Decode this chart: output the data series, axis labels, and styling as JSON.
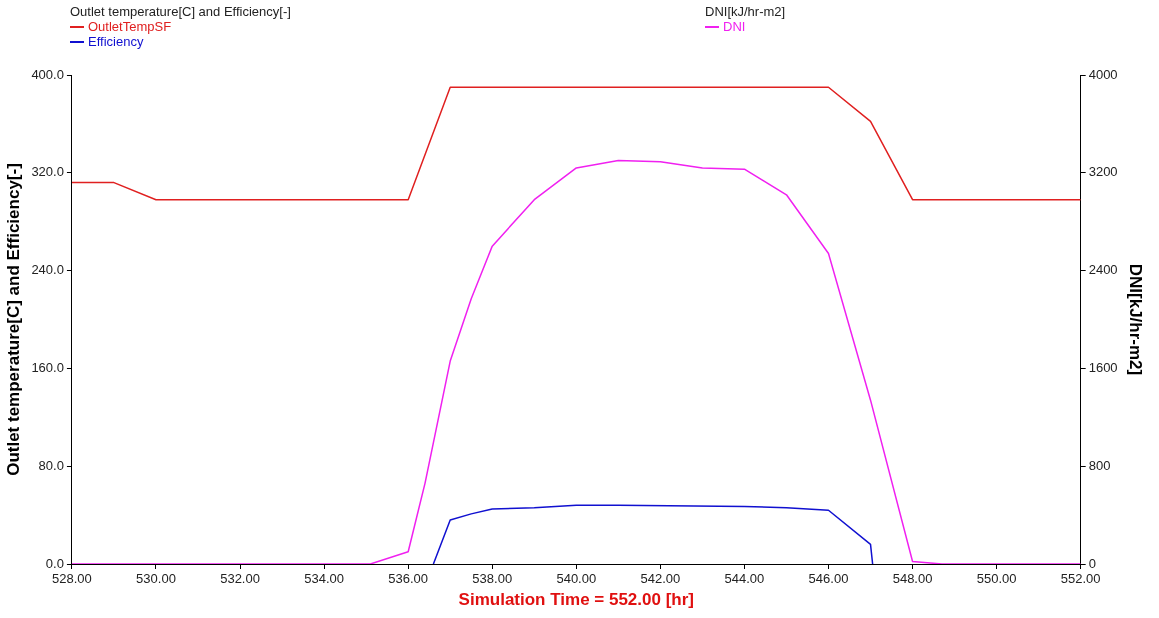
{
  "chart_data": {
    "type": "line",
    "legend_title": "Outlet temperature[C] and Efficiency[-]",
    "annotations": [
      "DNI[kJ/hr-m2]"
    ],
    "xlabel": "Simulation Time = 552.00 [hr]",
    "ylabel": "Outlet temperature[C] and Efficiency[-]",
    "y2label": "DNI[kJ/hr-m2]",
    "legend": "top",
    "grid": false,
    "marker": "none",
    "line_style": "solid",
    "xlim": [
      528,
      552
    ],
    "xticks": [
      {
        "value": 528,
        "label": "528.00"
      },
      {
        "value": 530,
        "label": "530.00"
      },
      {
        "value": 532,
        "label": "532.00"
      },
      {
        "value": 534,
        "label": "534.00"
      },
      {
        "value": 536,
        "label": "536.00"
      },
      {
        "value": 538,
        "label": "538.00"
      },
      {
        "value": 540,
        "label": "540.00"
      },
      {
        "value": 542,
        "label": "542.00"
      },
      {
        "value": 544,
        "label": "544.00"
      },
      {
        "value": 546,
        "label": "546.00"
      },
      {
        "value": 548,
        "label": "548.00"
      },
      {
        "value": 550,
        "label": "550.00"
      },
      {
        "value": 552,
        "label": "552.00"
      }
    ],
    "ylim": [
      0,
      400
    ],
    "yticks": [
      {
        "value": 0,
        "label": "0.0"
      },
      {
        "value": 80,
        "label": "80.0"
      },
      {
        "value": 160,
        "label": "160.0"
      },
      {
        "value": 240,
        "label": "240.0"
      },
      {
        "value": 320,
        "label": "320.0"
      },
      {
        "value": 400,
        "label": "400.0"
      }
    ],
    "y2lim": [
      0,
      4000
    ],
    "y2ticks": [
      0,
      800,
      1600,
      2400,
      3200,
      4000
    ],
    "series": [
      {
        "name": "OutletTempSF",
        "color": "#e02020",
        "x": [
          528,
          529,
          530,
          536,
          537,
          546,
          547,
          548,
          552
        ],
        "values": [
          312,
          312,
          298,
          298,
          390,
          390,
          362,
          298,
          298
        ]
      },
      {
        "name": "Efficiency",
        "color": "#1010d0",
        "x": [
          536.6,
          537,
          537.5,
          538,
          539,
          540,
          541,
          544,
          545,
          546,
          547,
          547.05
        ],
        "values": [
          0,
          36,
          41,
          45,
          46,
          48,
          48,
          47,
          46,
          44,
          16,
          0
        ]
      },
      {
        "name": "DNI",
        "color": "#f020f0",
        "axis": "y2",
        "x": [
          528,
          535.1,
          536,
          536.4,
          537,
          537.5,
          538,
          539,
          540,
          541,
          542,
          543,
          544,
          545,
          546,
          547,
          548,
          548.7,
          552
        ],
        "values": [
          0,
          0,
          100,
          660,
          1660,
          2170,
          2600,
          2980,
          3240,
          3300,
          3290,
          3240,
          3230,
          3020,
          2540,
          1340,
          20,
          0,
          0
        ]
      }
    ]
  }
}
